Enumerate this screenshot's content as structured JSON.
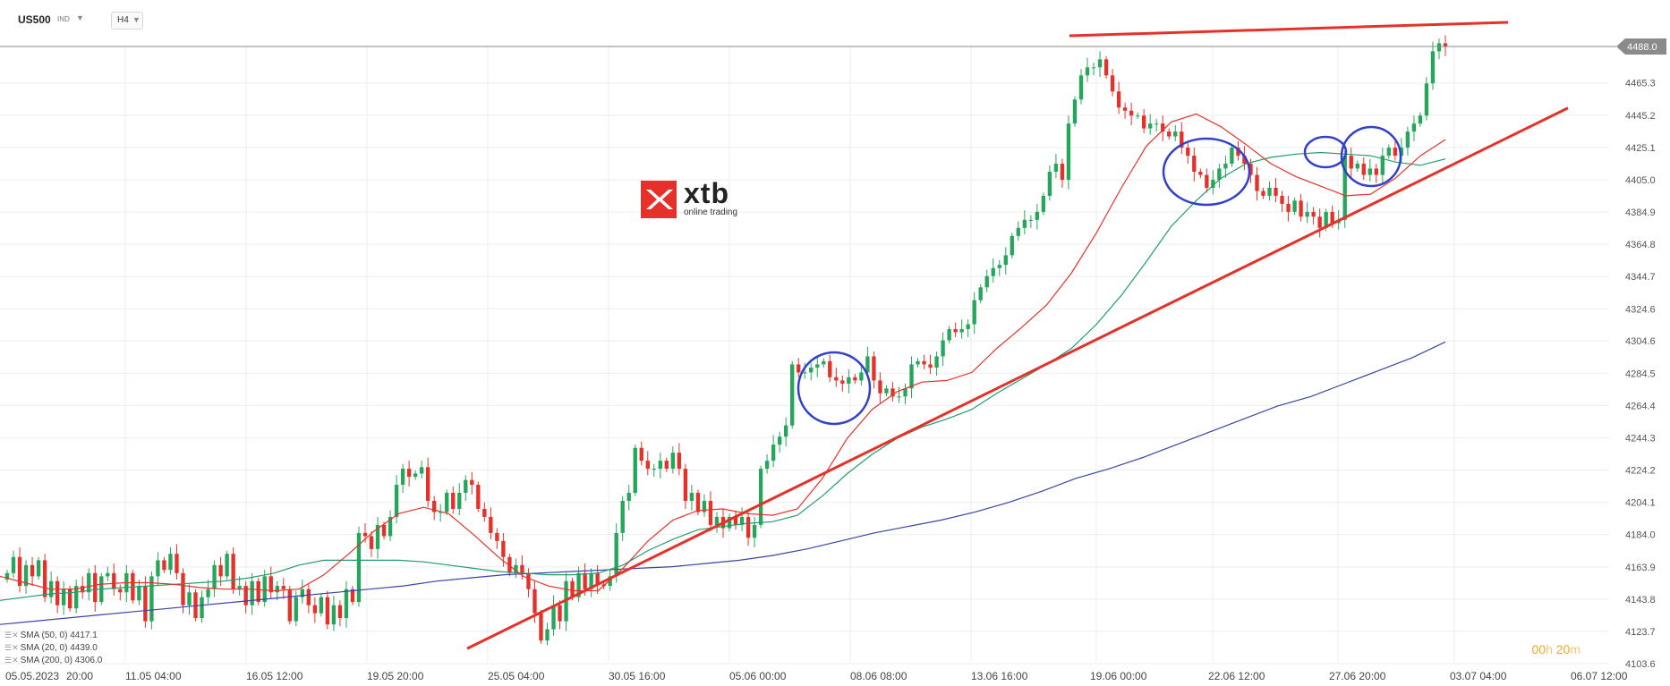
{
  "header": {
    "symbol": "US500",
    "symbol_type": "IND",
    "timeframe": "H4"
  },
  "countdown": {
    "hours": "00",
    "h_unit": "h",
    "minutes": "20",
    "m_unit": "m"
  },
  "logo": {
    "name": "xtb",
    "tagline": "online trading"
  },
  "colors": {
    "bull": "#26a65b",
    "bear": "#e4322b",
    "sma20": "#e4322b",
    "sma50": "#1f9e6a",
    "sma200": "#3b43a8",
    "annotation_line": "#e4322b",
    "annotation_circle": "#3340c9",
    "price_tag_bg": "#8a8a8a"
  },
  "legend": [
    {
      "label": "SMA (50, 0)",
      "value": "4417.1"
    },
    {
      "label": "SMA (20, 0)",
      "value": "4439.0"
    },
    {
      "label": "SMA (200, 0)",
      "value": "4306.0"
    }
  ],
  "chart_data": {
    "type": "candlestick",
    "title": "US500",
    "timeframe": "H4",
    "ylim": [
      4098.0,
      4500.0
    ],
    "grid": true,
    "current_price": 4488.0,
    "y_ticks": [
      4103.6,
      4123.7,
      4143.8,
      4163.9,
      4184.0,
      4204.1,
      4224.2,
      4244.3,
      4264.4,
      4284.5,
      4304.6,
      4324.6,
      4344.7,
      4364.8,
      4384.9,
      4405.0,
      4425.1,
      4445.2,
      4465.3
    ],
    "x_labels": [
      "05.05.2023",
      "20:00",
      "11.05 04:00",
      "16.05 12:00",
      "19.05 20:00",
      "25.05 04:00",
      "30.05 16:00",
      "05.06 00:00",
      "08.06 08:00",
      "13.06 16:00",
      "19.06 00:00",
      "22.06 12:00",
      "27.06 20:00",
      "03.07 04:00",
      "06.07 12:00"
    ],
    "candles": [
      4160,
      4170,
      4152,
      4165,
      4158,
      4168,
      4145,
      4155,
      4140,
      4150,
      4138,
      4152,
      4148,
      4160,
      4142,
      4158,
      4160,
      4150,
      4148,
      4160,
      4143,
      4152,
      4130,
      4158,
      4168,
      4162,
      4172,
      4160,
      4140,
      4148,
      4132,
      4145,
      4150,
      4165,
      4158,
      4172,
      4150,
      4152,
      4140,
      4155,
      4142,
      4158,
      4148,
      4152,
      4150,
      4130,
      4145,
      4150,
      4140,
      4135,
      4145,
      4128,
      4140,
      4132,
      4150,
      4142,
      4185,
      4183,
      4175,
      4190,
      4183,
      4195,
      4215,
      4225,
      4220,
      4222,
      4226,
      4205,
      4198,
      4198,
      4210,
      4200,
      4210,
      4218,
      4215,
      4200,
      4195,
      4185,
      4180,
      4170,
      4160,
      4165,
      4160,
      4150,
      4135,
      4118,
      4125,
      4140,
      4130,
      4155,
      4145,
      4160,
      4150,
      4160,
      4153,
      4152,
      4158,
      4185,
      4205,
      4210,
      4238,
      4230,
      4225,
      4225,
      4230,
      4225,
      4235,
      4225,
      4205,
      4210,
      4198,
      4205,
      4190,
      4195,
      4188,
      4195,
      4190,
      4195,
      4182,
      4190,
      4225,
      4230,
      4240,
      4245,
      4252,
      4290,
      4285,
      4285,
      4288,
      4290,
      4292,
      4282,
      4280,
      4278,
      4282,
      4280,
      4285,
      4295,
      4280,
      4272,
      4275,
      4270,
      4270,
      4275,
      4290,
      4292,
      4290,
      4288,
      4295,
      4305,
      4312,
      4310,
      4312,
      4315,
      4330,
      4338,
      4345,
      4350,
      4352,
      4358,
      4370,
      4375,
      4380,
      4380,
      4385,
      4395,
      4410,
      4415,
      4405,
      4440,
      4455,
      4470,
      4475,
      4475,
      4480,
      4470,
      4460,
      4450,
      4448,
      4445,
      4445,
      4437,
      4440,
      4440,
      4435,
      4432,
      4435,
      4425,
      4420,
      4410,
      4408,
      4400,
      4405,
      4412,
      4415,
      4425,
      4420,
      4415,
      4408,
      4398,
      4395,
      4400,
      4395,
      4390,
      4385,
      4392,
      4382,
      4385,
      4382,
      4375,
      4385,
      4378,
      4380,
      4420,
      4412,
      4415,
      4408,
      4412,
      4408,
      4420,
      4425,
      4420,
      4425,
      4435,
      4440,
      4445,
      4465,
      4485,
      4490,
      4488
    ],
    "sma20": [
      4158,
      4154,
      4150,
      4150,
      4153,
      4154,
      4154,
      4153,
      4151,
      4150,
      4150,
      4149,
      4150,
      4159,
      4172,
      4186,
      4197,
      4201,
      4197,
      4184,
      4170,
      4158,
      4152,
      4149,
      4149,
      4163,
      4180,
      4193,
      4199,
      4200,
      4197,
      4196,
      4200,
      4219,
      4244,
      4262,
      4273,
      4279,
      4280,
      4285,
      4300,
      4313,
      4327,
      4347,
      4372,
      4400,
      4426,
      4441,
      4446,
      4438,
      4427,
      4415,
      4407,
      4401,
      4395,
      4396,
      4406,
      4420,
      4430
    ],
    "sma50": [
      4143,
      4145,
      4147,
      4148,
      4150,
      4151,
      4152,
      4153,
      4154,
      4155,
      4157,
      4160,
      4165,
      4168,
      4168,
      4168,
      4168,
      4167,
      4165,
      4163,
      4161,
      4160,
      4159,
      4159,
      4160,
      4165,
      4174,
      4181,
      4187,
      4189,
      4191,
      4192,
      4196,
      4208,
      4222,
      4234,
      4244,
      4251,
      4256,
      4262,
      4272,
      4281,
      4290,
      4300,
      4315,
      4333,
      4354,
      4376,
      4392,
      4406,
      4415,
      4419,
      4421,
      4422,
      4421,
      4420,
      4416,
      4414,
      4418
    ],
    "sma200": [
      4128,
      4130,
      4132,
      4134,
      4136,
      4138,
      4140,
      4142,
      4144,
      4146,
      4148,
      4150,
      4152,
      4155,
      4157,
      4159,
      4160,
      4161,
      4162,
      4163,
      4164,
      4166,
      4168,
      4171,
      4175,
      4180,
      4185,
      4189,
      4193,
      4198,
      4204,
      4211,
      4219,
      4225,
      4232,
      4240,
      4248,
      4256,
      4264,
      4270,
      4278,
      4286,
      4294,
      4304
    ],
    "annotations": {
      "support_line": {
        "from": [
          4113,
          4528
        ],
        "to": [
          4449,
          4450
        ]
      },
      "resistance_line": {
        "level": 4498
      }
    }
  }
}
